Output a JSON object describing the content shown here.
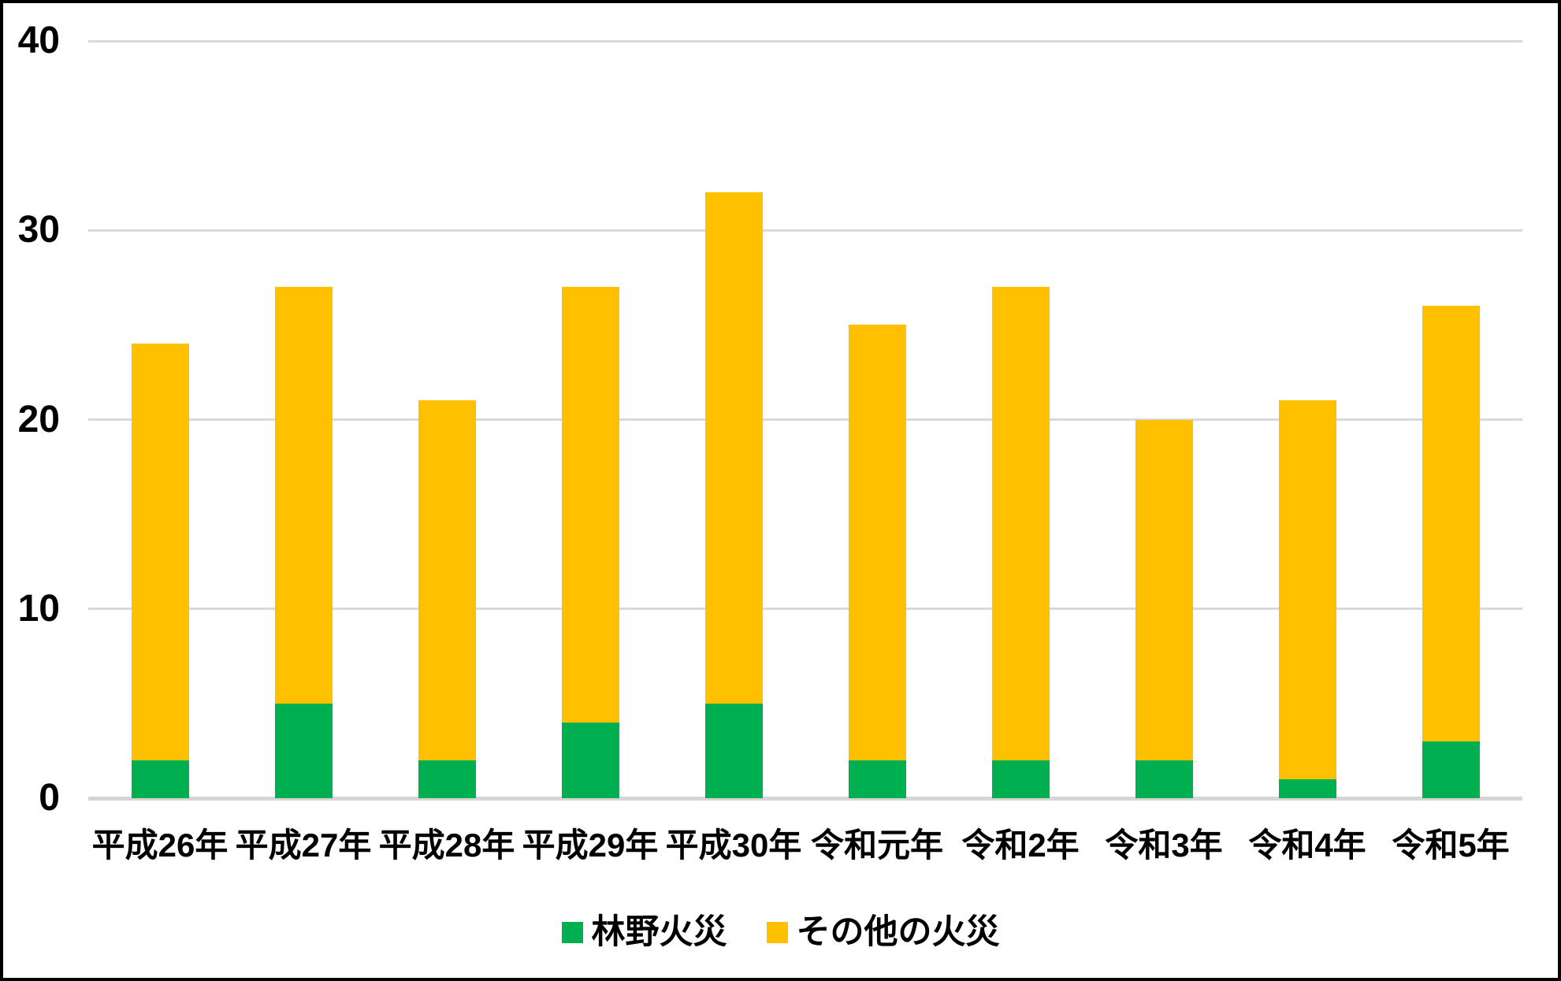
{
  "chart_data": {
    "type": "bar",
    "stacked": true,
    "title": "",
    "xlabel": "",
    "ylabel": "",
    "categories": [
      "平成26年",
      "平成27年",
      "平成28年",
      "平成29年",
      "平成30年",
      "令和元年",
      "令和2年",
      "令和3年",
      "令和4年",
      "令和5年"
    ],
    "series": [
      {
        "name": "林野火災",
        "color": "#00B050",
        "values": [
          2,
          5,
          2,
          4,
          5,
          2,
          2,
          2,
          1,
          3
        ]
      },
      {
        "name": "その他の火災",
        "color": "#FFC000",
        "values": [
          22,
          22,
          19,
          23,
          27,
          23,
          25,
          18,
          20,
          23
        ]
      }
    ],
    "stack_totals": [
      24,
      27,
      21,
      27,
      32,
      25,
      27,
      20,
      21,
      26
    ],
    "ylim": [
      0,
      40
    ],
    "yticks": [
      0,
      10,
      20,
      30,
      40
    ],
    "ytick_labels": [
      "0",
      "10",
      "20",
      "30",
      "40"
    ],
    "grid": true,
    "legend_position": "bottom",
    "legend_entries": [
      {
        "label": "林野火災",
        "color": "#00B050"
      },
      {
        "label": "その他の火災",
        "color": "#FFC000"
      }
    ]
  },
  "colors": {
    "background": "#FFFFFF",
    "border": "#000000",
    "gridline": "#D9D9D9",
    "baseline": "#D6D6D6",
    "text": "#000000"
  }
}
